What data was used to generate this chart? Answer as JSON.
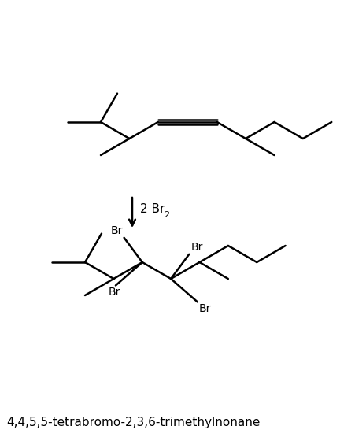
{
  "title": "4,4,5,5-tetrabromo-2,3,6-trimethylnonane",
  "line_color": "#000000",
  "bg_color": "#ffffff",
  "line_width": 1.8,
  "font_size_label": 11,
  "font_size_br": 10,
  "font_size_reagent": 11
}
